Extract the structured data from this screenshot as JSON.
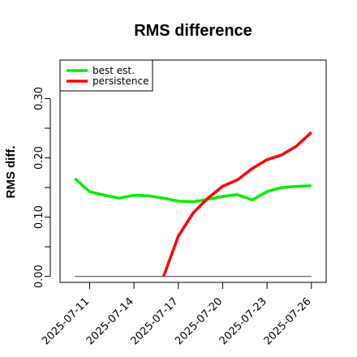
{
  "chart_data": {
    "type": "line",
    "title": "RMS difference",
    "xlabel": "",
    "ylabel": "RMS diff.",
    "x": [
      "2025-07-10",
      "2025-07-11",
      "2025-07-12",
      "2025-07-13",
      "2025-07-14",
      "2025-07-15",
      "2025-07-16",
      "2025-07-17",
      "2025-07-18",
      "2025-07-19",
      "2025-07-20",
      "2025-07-21",
      "2025-07-22",
      "2025-07-23",
      "2025-07-24",
      "2025-07-25",
      "2025-07-26"
    ],
    "x_tick_labels": [
      "2025-07-11",
      "2025-07-14",
      "2025-07-17",
      "2025-07-20",
      "2025-07-23",
      "2025-07-26"
    ],
    "y_ticks": [
      "0.00",
      "0.10",
      "0.20",
      "0.30"
    ],
    "ylim": [
      -0.01,
      0.365
    ],
    "xlim": [
      "2025-07-09",
      "2025-07-27"
    ],
    "grid": false,
    "legend_position": "top-left",
    "series": [
      {
        "name": "best est.",
        "color": "#00ee00",
        "values": [
          0.165,
          0.143,
          0.137,
          0.132,
          0.137,
          0.136,
          0.132,
          0.127,
          0.126,
          0.13,
          0.135,
          0.138,
          0.129,
          0.143,
          0.15,
          0.152,
          0.153
        ]
      },
      {
        "name": "persistence",
        "color": "#ff0000",
        "values": [
          null,
          null,
          null,
          null,
          null,
          null,
          0.0,
          0.068,
          0.107,
          0.132,
          0.152,
          0.163,
          0.182,
          0.197,
          0.205,
          0.22,
          0.243
        ]
      }
    ],
    "reference_line": {
      "y": 0.0,
      "color": "#555555"
    }
  }
}
